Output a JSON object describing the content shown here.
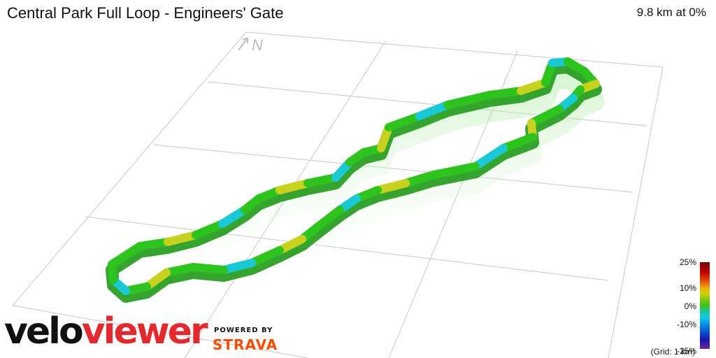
{
  "header": {
    "title": "Central Park Full Loop - Engineers' Gate",
    "stats": "9.8 km at 0%"
  },
  "map": {
    "north_label": "N",
    "grid_note": "(Grid: 1 km)",
    "gradient_legend": [
      "25%",
      "10%",
      "0%",
      "-10%",
      "-25%"
    ]
  },
  "branding": {
    "logo_part1": "velo",
    "logo_part2": "viewer",
    "powered_by": "POWERED BY",
    "strava": "STRAVA"
  },
  "colors": {
    "flat": "#2ec41e",
    "slight_up": "#c8d21e",
    "slight_down": "#19c9d6",
    "logo_red": "#e4282d",
    "strava_orange": "#fc4c02"
  }
}
